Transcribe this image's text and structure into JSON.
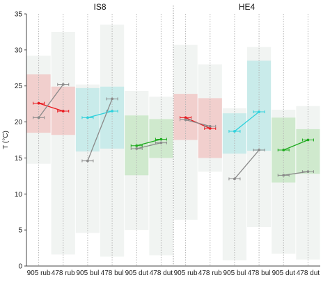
{
  "chart_data": {
    "type": "line",
    "ylabel": "T (°C)",
    "ylim": [
      0,
      35
    ],
    "yticks": [
      0,
      5,
      10,
      15,
      20,
      25,
      30,
      35
    ],
    "panels": [
      {
        "title": "IS8",
        "categories": [
          "905 rub",
          "478 rub",
          "905 bul",
          "478 bul",
          "905 dut",
          "478 dut"
        ],
        "ranges": [
          {
            "category": "905 rub",
            "outer": [
              14.2,
              29.2
            ],
            "inner": [
              18.5,
              26.6
            ],
            "color": "#f08a8a"
          },
          {
            "category": "478 rub",
            "outer": [
              1.6,
              32.5
            ],
            "inner": [
              18.2,
              24.9
            ],
            "color": "#f08a8a"
          },
          {
            "category": "905 bul",
            "outer": [
              4.6,
              25.2
            ],
            "inner": [
              15.9,
              24.7
            ],
            "color": "#7fd9de"
          },
          {
            "category": "478 bul",
            "outer": [
              1.3,
              33.5
            ],
            "inner": [
              16.3,
              24.9
            ],
            "color": "#7fd9de"
          },
          {
            "category": "905 dut",
            "outer": [
              5.0,
              24.3
            ],
            "inner": [
              12.6,
              20.9
            ],
            "color": "#8fd48a"
          },
          {
            "category": "478 dut",
            "outer": [
              1.5,
              23.5
            ],
            "inner": [
              15.0,
              20.4
            ],
            "color": "#8fd48a"
          }
        ],
        "series": [
          {
            "color": "#e8181e",
            "values": [
              {
                "category": "905 rub",
                "y": 22.6
              },
              {
                "category": "478 rub",
                "y": 21.5
              }
            ]
          },
          {
            "color": "#8a8a8a",
            "values": [
              {
                "category": "905 rub",
                "y": 20.6
              },
              {
                "category": "478 rub",
                "y": 25.2
              }
            ]
          },
          {
            "color": "#2fd1dc",
            "values": [
              {
                "category": "905 bul",
                "y": 20.6
              },
              {
                "category": "478 bul",
                "y": 21.5
              }
            ]
          },
          {
            "color": "#8a8a8a",
            "values": [
              {
                "category": "905 bul",
                "y": 14.6
              },
              {
                "category": "478 bul",
                "y": 23.2
              }
            ]
          },
          {
            "color": "#1faa1f",
            "values": [
              {
                "category": "905 dut",
                "y": 16.7
              },
              {
                "category": "478 dut",
                "y": 17.6
              }
            ]
          },
          {
            "color": "#8a8a8a",
            "values": [
              {
                "category": "905 dut",
                "y": 16.3
              },
              {
                "category": "478 dut",
                "y": 17.1
              }
            ]
          }
        ]
      },
      {
        "title": "HE4",
        "categories": [
          "905 rub",
          "478 rub",
          "905 bul",
          "478 bul",
          "905 dut",
          "478 dut"
        ],
        "ranges": [
          {
            "category": "905 rub",
            "outer": [
              6.4,
              30.7
            ],
            "inner": [
              17.5,
              23.9
            ],
            "color": "#f08a8a"
          },
          {
            "category": "478 rub",
            "outer": [
              13.1,
              28.0
            ],
            "inner": [
              15.0,
              23.3
            ],
            "color": "#f08a8a"
          },
          {
            "category": "905 bul",
            "outer": [
              0.8,
              21.9
            ],
            "inner": [
              15.6,
              21.2
            ],
            "color": "#7fd9de"
          },
          {
            "category": "478 bul",
            "outer": [
              5.4,
              30.4
            ],
            "inner": [
              16.0,
              28.5
            ],
            "color": "#7fd9de"
          },
          {
            "category": "905 dut",
            "outer": [
              1.7,
              21.7
            ],
            "inner": [
              11.6,
              20.6
            ],
            "color": "#8fd48a"
          },
          {
            "category": "478 dut",
            "outer": [
              0.9,
              22.2
            ],
            "inner": [
              12.8,
              19.0
            ],
            "color": "#8fd48a"
          }
        ],
        "series": [
          {
            "color": "#e8181e",
            "values": [
              {
                "category": "905 rub",
                "y": 20.6
              },
              {
                "category": "478 rub",
                "y": 19.1
              }
            ]
          },
          {
            "color": "#8a8a8a",
            "values": [
              {
                "category": "905 rub",
                "y": 20.3
              },
              {
                "category": "478 rub",
                "y": 19.4
              }
            ]
          },
          {
            "color": "#2fd1dc",
            "values": [
              {
                "category": "905 bul",
                "y": 18.7
              },
              {
                "category": "478 bul",
                "y": 21.4
              }
            ]
          },
          {
            "color": "#8a8a8a",
            "values": [
              {
                "category": "905 bul",
                "y": 12.1
              },
              {
                "category": "478 bul",
                "y": 16.1
              }
            ]
          },
          {
            "color": "#1faa1f",
            "values": [
              {
                "category": "905 dut",
                "y": 16.1
              },
              {
                "category": "478 dut",
                "y": 17.5
              }
            ]
          },
          {
            "color": "#8a8a8a",
            "values": [
              {
                "category": "905 dut",
                "y": 12.6
              },
              {
                "category": "478 dut",
                "y": 13.1
              }
            ]
          }
        ]
      }
    ],
    "grid": "vertical dotted lines",
    "legend": "none"
  }
}
